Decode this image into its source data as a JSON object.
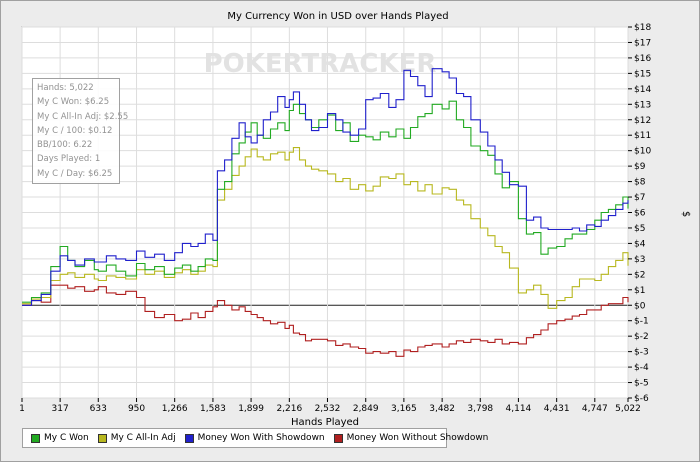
{
  "chart_data": {
    "type": "line",
    "title": "My Currency Won in USD over Hands Played",
    "xlabel": "Hands Played",
    "ylabel": "$",
    "xlim": [
      1,
      5022
    ],
    "ylim": [
      -6,
      18
    ],
    "x_ticks": [
      "1",
      "317",
      "633",
      "950",
      "1,266",
      "1,583",
      "1,899",
      "2,216",
      "2,532",
      "2,849",
      "3,165",
      "3,482",
      "3,798",
      "4,114",
      "4,431",
      "4,747",
      "5,022"
    ],
    "y_ticks": [
      "$18",
      "$17",
      "$16",
      "$15",
      "$14",
      "$13",
      "$12",
      "$11",
      "$10",
      "$9",
      "$8",
      "$7",
      "$6",
      "$5",
      "$4",
      "$3",
      "$2",
      "$1",
      "$0",
      "$-1",
      "$-2",
      "$-3",
      "$-4",
      "$-5",
      "$-6"
    ],
    "grid": true,
    "watermark": "POKERTRACKER",
    "legend_position": "bottom-left",
    "stats": [
      "Hands: 5,022",
      "My C Won: $6.25",
      "My C All-In Adj: $2.55",
      "My C / 100: $0.12",
      "BB/100: 6.22",
      "Days Played: 1",
      "My C / Day: $6.25"
    ],
    "series": [
      {
        "name": "My C Won",
        "color": "#22aa22",
        "x": [
          1,
          80,
          160,
          240,
          317,
          380,
          440,
          520,
          600,
          633,
          700,
          780,
          860,
          950,
          1020,
          1100,
          1180,
          1266,
          1330,
          1400,
          1460,
          1520,
          1583,
          1620,
          1680,
          1740,
          1800,
          1850,
          1899,
          1950,
          2000,
          2060,
          2120,
          2180,
          2216,
          2250,
          2300,
          2350,
          2400,
          2460,
          2532,
          2600,
          2660,
          2720,
          2790,
          2849,
          2910,
          2970,
          3040,
          3100,
          3165,
          3220,
          3280,
          3340,
          3400,
          3482,
          3540,
          3600,
          3660,
          3720,
          3798,
          3860,
          3920,
          3980,
          4040,
          4114,
          4180,
          4240,
          4300,
          4360,
          4431,
          4500,
          4560,
          4620,
          4680,
          4747,
          4800,
          4860,
          4920,
          4980,
          5022
        ],
        "values": [
          0.2,
          0.5,
          0.8,
          2.5,
          3.8,
          2.9,
          2.5,
          2.9,
          2.3,
          2.2,
          2.6,
          2.2,
          1.9,
          2.7,
          2.3,
          2.5,
          2.0,
          2.4,
          2.6,
          2.2,
          2.5,
          3.0,
          2.9,
          7.5,
          8.0,
          9.8,
          10.5,
          11.2,
          11.8,
          11.0,
          10.8,
          11.4,
          11.8,
          11.3,
          12.6,
          13.0,
          12.4,
          12.0,
          11.5,
          12.0,
          12.3,
          11.3,
          11.8,
          10.6,
          11.0,
          10.9,
          10.7,
          11.2,
          10.9,
          11.4,
          10.8,
          11.5,
          12.2,
          12.4,
          13.0,
          12.7,
          13.2,
          12.0,
          11.5,
          10.3,
          10.0,
          9.7,
          8.5,
          7.6,
          8.0,
          5.6,
          4.6,
          4.7,
          3.3,
          3.7,
          3.8,
          4.3,
          4.6,
          4.6,
          4.9,
          5.5,
          6.0,
          6.2,
          6.5,
          7.0,
          6.25
        ]
      },
      {
        "name": "My C All-In Adj",
        "color": "#b8b820",
        "x": [
          1,
          80,
          160,
          240,
          317,
          380,
          440,
          520,
          600,
          633,
          700,
          780,
          860,
          950,
          1020,
          1100,
          1180,
          1266,
          1330,
          1400,
          1460,
          1520,
          1583,
          1620,
          1680,
          1740,
          1800,
          1850,
          1899,
          1950,
          2000,
          2060,
          2120,
          2180,
          2216,
          2250,
          2300,
          2350,
          2400,
          2460,
          2532,
          2600,
          2660,
          2720,
          2790,
          2849,
          2910,
          2970,
          3040,
          3100,
          3165,
          3220,
          3280,
          3340,
          3400,
          3482,
          3540,
          3600,
          3660,
          3720,
          3798,
          3860,
          3920,
          3980,
          4040,
          4114,
          4180,
          4240,
          4300,
          4360,
          4431,
          4500,
          4560,
          4620,
          4680,
          4747,
          4800,
          4860,
          4920,
          4980,
          5022
        ],
        "values": [
          0.1,
          0.4,
          0.5,
          1.6,
          2.0,
          2.1,
          1.8,
          2.0,
          1.7,
          1.6,
          1.9,
          1.8,
          1.7,
          2.3,
          2.0,
          2.2,
          1.8,
          2.1,
          2.3,
          2.0,
          2.2,
          2.6,
          2.5,
          6.8,
          7.5,
          8.4,
          9.0,
          9.6,
          10.1,
          9.6,
          9.4,
          9.8,
          9.9,
          9.4,
          9.9,
          10.2,
          9.4,
          9.0,
          8.8,
          8.7,
          8.5,
          8.0,
          8.2,
          7.5,
          7.8,
          7.4,
          7.7,
          8.3,
          8.2,
          8.5,
          7.8,
          8.0,
          7.4,
          7.8,
          7.2,
          7.6,
          7.5,
          6.8,
          6.5,
          5.6,
          5.0,
          4.5,
          3.8,
          3.4,
          2.4,
          0.8,
          1.0,
          1.3,
          0.7,
          -0.2,
          0.3,
          0.5,
          1.2,
          1.7,
          1.7,
          1.6,
          2.0,
          2.5,
          2.9,
          3.4,
          2.55
        ]
      },
      {
        "name": "Money Won With Showdown",
        "color": "#2020cc",
        "x": [
          1,
          80,
          160,
          240,
          317,
          380,
          440,
          520,
          600,
          633,
          700,
          780,
          860,
          950,
          1020,
          1100,
          1180,
          1266,
          1330,
          1400,
          1460,
          1520,
          1583,
          1620,
          1680,
          1740,
          1800,
          1850,
          1899,
          1950,
          2000,
          2060,
          2120,
          2180,
          2216,
          2250,
          2300,
          2350,
          2400,
          2460,
          2532,
          2600,
          2660,
          2720,
          2790,
          2849,
          2910,
          2970,
          3040,
          3100,
          3165,
          3220,
          3280,
          3340,
          3400,
          3482,
          3540,
          3600,
          3660,
          3720,
          3798,
          3860,
          3920,
          3980,
          4040,
          4114,
          4180,
          4240,
          4300,
          4360,
          4431,
          4500,
          4560,
          4620,
          4680,
          4747,
          4800,
          4860,
          4920,
          4980,
          5022
        ],
        "values": [
          0.0,
          0.3,
          0.7,
          2.2,
          3.2,
          2.9,
          2.6,
          3.0,
          2.8,
          2.8,
          3.2,
          3.0,
          2.9,
          3.5,
          3.1,
          3.3,
          2.9,
          3.4,
          4.0,
          3.8,
          4.0,
          4.6,
          4.2,
          8.7,
          9.4,
          10.8,
          11.8,
          10.9,
          10.5,
          11.0,
          12.0,
          12.5,
          13.5,
          12.8,
          13.3,
          13.8,
          13.0,
          12.0,
          11.3,
          11.5,
          12.4,
          12.0,
          11.2,
          11.0,
          11.4,
          13.3,
          13.4,
          13.7,
          12.8,
          13.3,
          15.2,
          14.8,
          14.2,
          13.5,
          15.3,
          15.1,
          14.7,
          13.7,
          13.5,
          12.0,
          11.2,
          10.3,
          9.4,
          8.6,
          7.8,
          7.7,
          5.5,
          5.7,
          5.0,
          4.9,
          4.9,
          4.9,
          5.0,
          4.8,
          5.2,
          5.1,
          5.5,
          5.8,
          6.2,
          6.6,
          6.8
        ]
      },
      {
        "name": "Money Won Without Showdown",
        "color": "#b02020",
        "x": [
          1,
          80,
          160,
          240,
          317,
          380,
          440,
          520,
          600,
          633,
          700,
          780,
          860,
          950,
          1020,
          1100,
          1180,
          1266,
          1330,
          1400,
          1460,
          1520,
          1583,
          1620,
          1680,
          1740,
          1800,
          1850,
          1899,
          1950,
          2000,
          2060,
          2120,
          2180,
          2216,
          2250,
          2300,
          2350,
          2400,
          2460,
          2532,
          2600,
          2660,
          2720,
          2790,
          2849,
          2910,
          2970,
          3040,
          3100,
          3165,
          3220,
          3280,
          3340,
          3400,
          3482,
          3540,
          3600,
          3660,
          3720,
          3798,
          3860,
          3920,
          3980,
          4040,
          4114,
          4180,
          4240,
          4300,
          4360,
          4431,
          4500,
          4560,
          4620,
          4680,
          4747,
          4800,
          4860,
          4920,
          4980,
          5022
        ],
        "values": [
          0.0,
          0.3,
          0.2,
          1.3,
          1.3,
          1.1,
          1.2,
          0.9,
          1.0,
          1.2,
          0.8,
          0.7,
          0.9,
          0.5,
          -0.4,
          -0.8,
          -0.6,
          -1.0,
          -0.9,
          -0.5,
          -0.8,
          -0.4,
          -0.1,
          0.3,
          0.0,
          -0.3,
          -0.1,
          -0.4,
          -0.6,
          -0.8,
          -1.0,
          -1.2,
          -1.1,
          -1.5,
          -1.3,
          -1.8,
          -1.9,
          -2.3,
          -2.2,
          -2.2,
          -2.3,
          -2.6,
          -2.5,
          -2.7,
          -2.8,
          -3.1,
          -3.0,
          -3.1,
          -3.0,
          -3.3,
          -2.9,
          -3.0,
          -2.7,
          -2.6,
          -2.5,
          -2.7,
          -2.5,
          -2.3,
          -2.4,
          -2.2,
          -2.3,
          -2.4,
          -2.2,
          -2.5,
          -2.4,
          -2.5,
          -2.1,
          -1.9,
          -1.6,
          -1.2,
          -1.0,
          -0.9,
          -0.7,
          -0.6,
          -0.3,
          -0.3,
          0.0,
          0.1,
          0.1,
          0.5,
          0.2
        ]
      }
    ]
  }
}
